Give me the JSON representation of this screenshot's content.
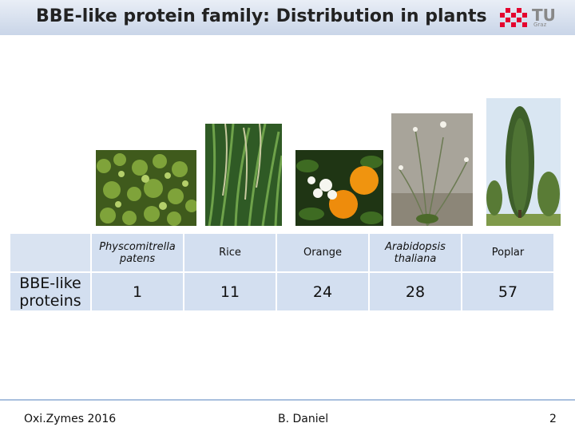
{
  "header": {
    "title": "BBE-like protein family: Distribution in plants",
    "logo_text": "TU",
    "logo_subtext": "Graz"
  },
  "photos": [
    {
      "icon": "moss-photo"
    },
    {
      "icon": "rice-photo"
    },
    {
      "icon": "orange-photo"
    },
    {
      "icon": "arabidopsis-photo"
    },
    {
      "icon": "poplar-photo"
    }
  ],
  "table": {
    "row_label": "BBE-like proteins",
    "columns": [
      {
        "name": "Physcomitrella patens",
        "italic": true,
        "value": "1"
      },
      {
        "name": "Rice",
        "italic": false,
        "value": "11"
      },
      {
        "name": "Orange",
        "italic": false,
        "value": "24"
      },
      {
        "name": "Arabidopsis thaliana",
        "italic": true,
        "value": "28"
      },
      {
        "name": "Poplar",
        "italic": false,
        "value": "57"
      }
    ]
  },
  "footer": {
    "left": "Oxi.Zymes 2016",
    "center": "B. Daniel",
    "page": "2"
  },
  "colors": {
    "cell_bg": "#d3dff0",
    "logo_red": "#e4032e",
    "footer_line": "#a9c0de"
  }
}
